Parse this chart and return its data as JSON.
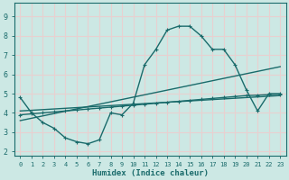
{
  "xlabel": "Humidex (Indice chaleur)",
  "xlim": [
    -0.5,
    23.5
  ],
  "ylim": [
    1.8,
    9.7
  ],
  "yticks": [
    2,
    3,
    4,
    5,
    6,
    7,
    8,
    9
  ],
  "xticks": [
    0,
    1,
    2,
    3,
    4,
    5,
    6,
    7,
    8,
    9,
    10,
    11,
    12,
    13,
    14,
    15,
    16,
    17,
    18,
    19,
    20,
    21,
    22,
    23
  ],
  "bg_color": "#cce8e4",
  "grid_color": "#e8d0d0",
  "line_color": "#1a6b6b",
  "line1_x": [
    0,
    1,
    2,
    3,
    4,
    5,
    6,
    7,
    8,
    9,
    10,
    11,
    12,
    13,
    14,
    15,
    16,
    17,
    18,
    19,
    20,
    21,
    22,
    23
  ],
  "line1_y": [
    4.8,
    4.0,
    3.5,
    3.2,
    2.7,
    2.5,
    2.4,
    2.6,
    4.0,
    3.9,
    4.5,
    6.5,
    7.3,
    8.3,
    8.5,
    8.5,
    8.0,
    7.3,
    7.3,
    6.5,
    5.2,
    4.1,
    5.0,
    5.0
  ],
  "line2_x": [
    0,
    1,
    2,
    3,
    4,
    5,
    6,
    7,
    8,
    9,
    10,
    11,
    12,
    13,
    14,
    15,
    16,
    17,
    18,
    19,
    20,
    21,
    22,
    23
  ],
  "line2_y": [
    3.9,
    3.95,
    4.0,
    4.05,
    4.1,
    4.15,
    4.2,
    4.25,
    4.3,
    4.35,
    4.4,
    4.45,
    4.5,
    4.55,
    4.6,
    4.65,
    4.7,
    4.75,
    4.8,
    4.85,
    4.9,
    4.92,
    4.95,
    4.97
  ],
  "line3_x": [
    0,
    23
  ],
  "line3_y": [
    3.6,
    6.4
  ],
  "line4_x": [
    0,
    23
  ],
  "line4_y": [
    4.1,
    4.9
  ],
  "marker_size": 2.5,
  "linewidth": 1.0
}
